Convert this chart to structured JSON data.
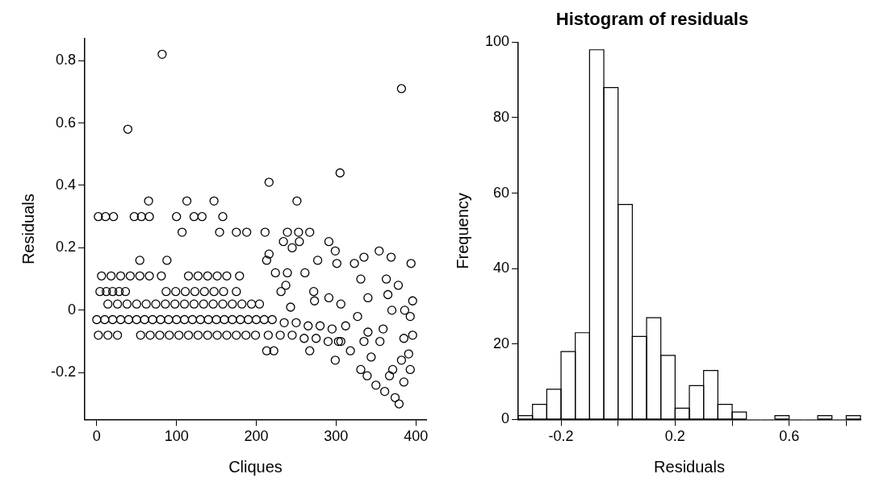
{
  "chart_data": [
    {
      "type": "scatter",
      "xlabel": "Cliques",
      "ylabel": "Residuals",
      "color": "#000000",
      "marker": "circle",
      "grid": false,
      "legend": false,
      "xlim": [
        -15,
        413
      ],
      "ylim": [
        -0.35,
        0.87
      ],
      "xticks": [
        0,
        100,
        200,
        300,
        400
      ],
      "yticks": [
        -0.2,
        0.0,
        0.2,
        0.4,
        0.6,
        0.8
      ],
      "x": [
        82,
        39,
        382,
        305,
        216,
        65,
        113,
        147,
        251,
        2,
        11,
        21,
        47,
        56,
        66,
        100,
        122,
        132,
        158,
        107,
        154,
        175,
        188,
        211,
        239,
        253,
        267,
        234,
        245,
        254,
        291,
        299,
        301,
        354,
        369,
        394,
        335,
        323,
        216,
        213,
        277,
        54,
        88,
        6,
        18,
        30,
        42,
        54,
        66,
        81,
        115,
        127,
        139,
        151,
        163,
        179,
        224,
        239,
        261,
        331,
        363,
        4,
        12,
        20,
        28,
        36,
        87,
        99,
        111,
        123,
        135,
        147,
        159,
        175,
        231,
        237,
        272,
        378,
        365,
        14,
        26,
        38,
        50,
        62,
        74,
        86,
        98,
        110,
        122,
        134,
        146,
        158,
        170,
        182,
        194,
        204,
        243,
        273,
        291,
        306,
        340,
        396,
        370,
        386,
        0,
        10,
        20,
        30,
        40,
        50,
        60,
        70,
        80,
        90,
        100,
        110,
        120,
        130,
        140,
        150,
        160,
        170,
        180,
        190,
        200,
        210,
        220,
        235,
        250,
        265,
        280,
        295,
        2,
        14,
        26,
        55,
        67,
        79,
        91,
        103,
        115,
        127,
        139,
        151,
        163,
        175,
        187,
        199,
        215,
        230,
        245,
        260,
        275,
        290,
        303,
        213,
        222,
        267,
        299,
        318,
        331,
        339,
        350,
        361,
        374,
        379,
        385,
        393,
        391,
        396,
        393,
        344,
        355,
        359,
        340,
        371,
        385,
        306,
        312,
        335,
        327,
        367,
        382
      ],
      "values": [
        0.82,
        0.58,
        0.71,
        0.44,
        0.41,
        0.35,
        0.35,
        0.35,
        0.35,
        0.3,
        0.3,
        0.3,
        0.3,
        0.3,
        0.3,
        0.3,
        0.3,
        0.3,
        0.3,
        0.25,
        0.25,
        0.25,
        0.25,
        0.25,
        0.25,
        0.25,
        0.25,
        0.22,
        0.2,
        0.22,
        0.22,
        0.19,
        0.15,
        0.19,
        0.17,
        0.15,
        0.17,
        0.15,
        0.18,
        0.16,
        0.16,
        0.16,
        0.16,
        0.11,
        0.11,
        0.11,
        0.11,
        0.11,
        0.11,
        0.11,
        0.11,
        0.11,
        0.11,
        0.11,
        0.11,
        0.11,
        0.12,
        0.12,
        0.12,
        0.1,
        0.1,
        0.06,
        0.06,
        0.06,
        0.06,
        0.06,
        0.06,
        0.06,
        0.06,
        0.06,
        0.06,
        0.06,
        0.06,
        0.06,
        0.06,
        0.08,
        0.06,
        0.08,
        0.05,
        0.02,
        0.02,
        0.02,
        0.02,
        0.02,
        0.02,
        0.02,
        0.02,
        0.02,
        0.02,
        0.02,
        0.02,
        0.02,
        0.02,
        0.02,
        0.02,
        0.02,
        0.01,
        0.03,
        0.04,
        0.02,
        0.04,
        0.03,
        0.0,
        0.0,
        -0.03,
        -0.03,
        -0.03,
        -0.03,
        -0.03,
        -0.03,
        -0.03,
        -0.03,
        -0.03,
        -0.03,
        -0.03,
        -0.03,
        -0.03,
        -0.03,
        -0.03,
        -0.03,
        -0.03,
        -0.03,
        -0.03,
        -0.03,
        -0.03,
        -0.03,
        -0.03,
        -0.04,
        -0.04,
        -0.05,
        -0.05,
        -0.06,
        -0.08,
        -0.08,
        -0.08,
        -0.08,
        -0.08,
        -0.08,
        -0.08,
        -0.08,
        -0.08,
        -0.08,
        -0.08,
        -0.08,
        -0.08,
        -0.08,
        -0.08,
        -0.08,
        -0.08,
        -0.08,
        -0.08,
        -0.09,
        -0.09,
        -0.1,
        -0.1,
        -0.13,
        -0.13,
        -0.13,
        -0.16,
        -0.13,
        -0.19,
        -0.21,
        -0.24,
        -0.26,
        -0.28,
        -0.3,
        -0.23,
        -0.19,
        -0.14,
        -0.08,
        -0.02,
        -0.15,
        -0.1,
        -0.06,
        -0.07,
        -0.19,
        -0.09,
        -0.1,
        -0.05,
        -0.1,
        -0.02,
        -0.21,
        -0.16
      ]
    },
    {
      "type": "histogram",
      "title": "Histogram of residuals",
      "xlabel": "Residuals",
      "ylabel": "Frequency",
      "color": "#ffffff",
      "grid": false,
      "legend": false,
      "bins": [
        -0.35,
        -0.3,
        -0.25,
        -0.2,
        -0.15,
        -0.1,
        -0.05,
        0.0,
        0.05,
        0.1,
        0.15,
        0.2,
        0.25,
        0.3,
        0.35,
        0.4,
        0.45,
        0.5,
        0.55,
        0.6,
        0.65,
        0.7,
        0.75,
        0.8,
        0.85
      ],
      "values": [
        1,
        4,
        8,
        18,
        23,
        98,
        88,
        57,
        22,
        27,
        17,
        3,
        9,
        13,
        4,
        2,
        0,
        0,
        1,
        0,
        0,
        1,
        0,
        1
      ],
      "xlim": [
        -0.35,
        0.85
      ],
      "ylim": [
        0,
        100
      ],
      "xticks": [
        -0.2,
        {
          "value": 0.0,
          "label": null
        },
        0.2,
        {
          "value": 0.4,
          "label": null
        },
        0.6,
        {
          "value": 0.8,
          "label": null
        }
      ],
      "yticks": [
        0,
        20,
        40,
        60,
        80,
        100
      ]
    }
  ]
}
